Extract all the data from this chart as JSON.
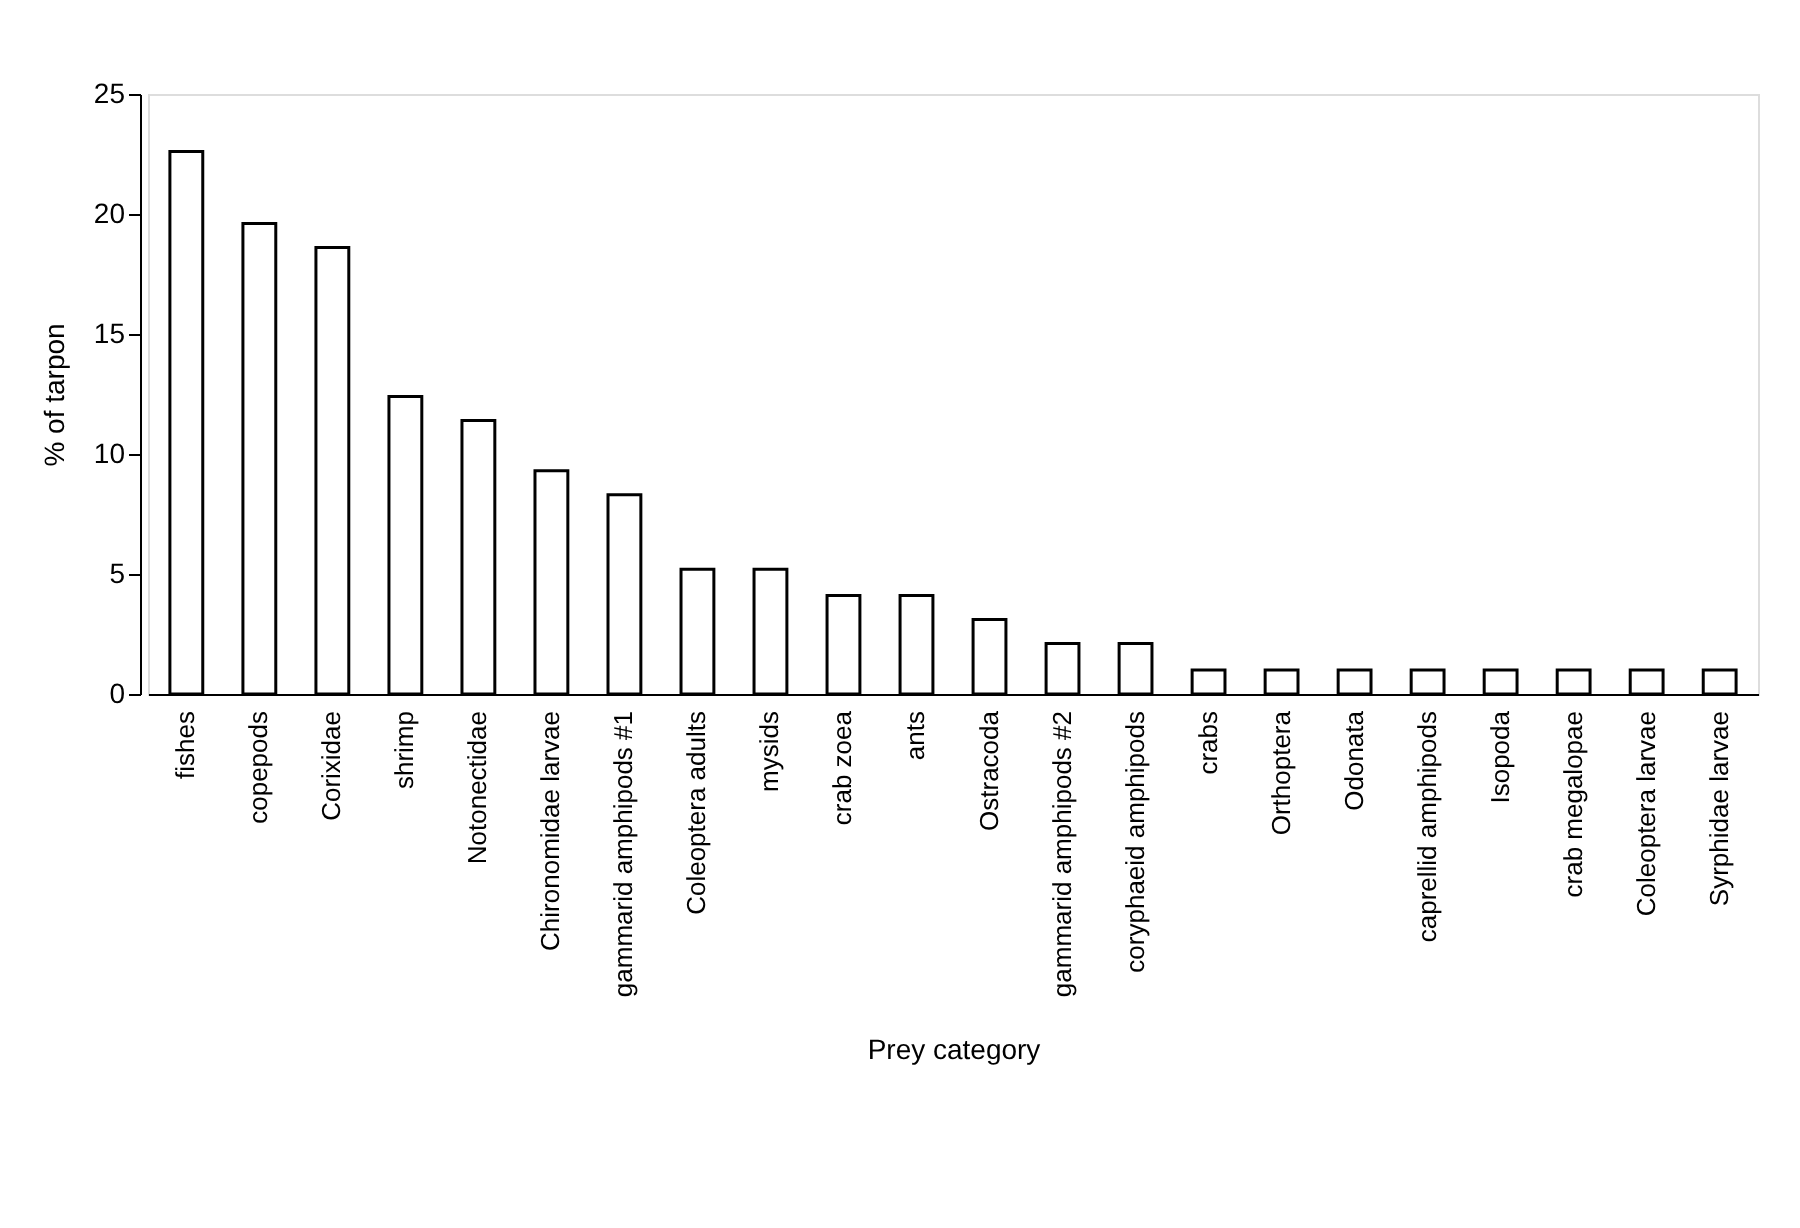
{
  "chart_data": {
    "type": "bar",
    "xlabel": "Prey category",
    "ylabel": "% of tarpon",
    "categories": [
      "fishes",
      "copepods",
      "Corixidae",
      "shrimp",
      "Notonectidae",
      "Chironomidae larvae",
      "gammarid amphipods #1",
      "Coleoptera adults",
      "mysids",
      "crab zoea",
      "ants",
      "Ostracoda",
      "gammarid amphipods #2",
      "coryphaeid amphipods",
      "crabs",
      "Orthoptera",
      "Odonata",
      "caprellid amphipods",
      "Isopoda",
      "crab megalopae",
      "Coleoptera larvae",
      "Syrphidae larvae"
    ],
    "values": [
      22.6,
      19.6,
      18.6,
      12.4,
      11.4,
      9.3,
      8.3,
      5.2,
      5.2,
      4.1,
      4.1,
      3.1,
      2.1,
      2.1,
      1.0,
      1.0,
      1.0,
      1.0,
      1.0,
      1.0,
      1.0,
      1.0
    ],
    "color": "#ffffff",
    "ylim": [
      0,
      25
    ],
    "yticks": [
      0,
      5,
      10,
      15,
      20,
      25
    ],
    "grid": false
  }
}
